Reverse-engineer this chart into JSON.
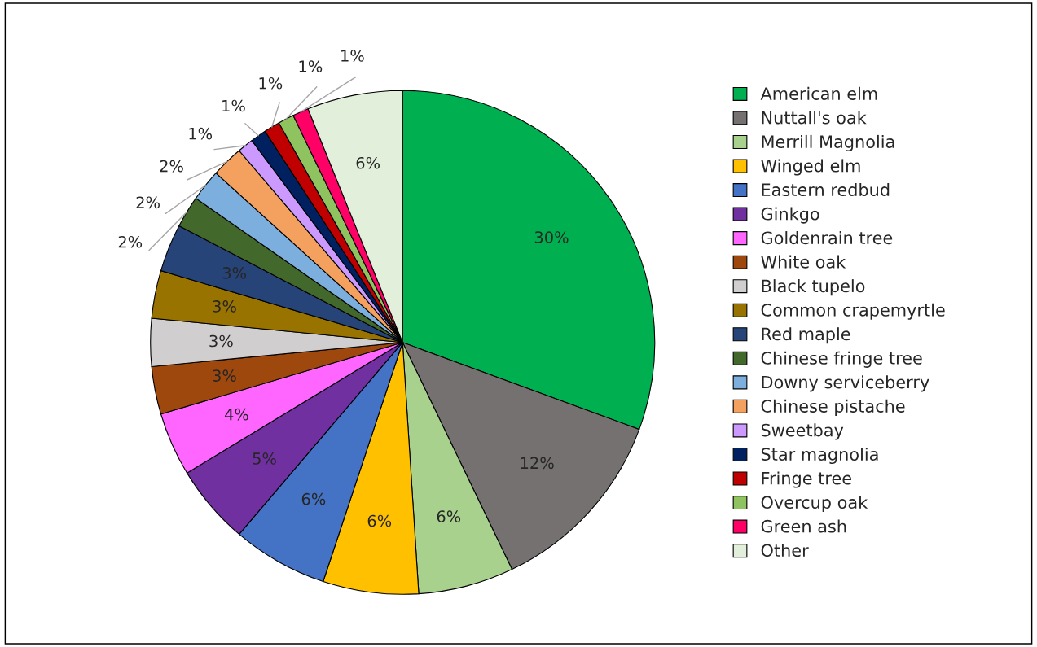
{
  "chart_data": {
    "type": "pie",
    "categories": [
      "American elm",
      "Nuttall's oak",
      "Merrill Magnolia",
      "Winged elm",
      "Eastern redbud",
      "Ginkgo",
      "Goldenrain tree",
      "White oak",
      "Black tupelo",
      "Common crapemyrtle",
      "Red maple",
      "Chinese fringe tree",
      "Downy serviceberry",
      "Chinese pistache",
      "Sweetbay",
      "Star magnolia",
      "Fringe tree",
      "Overcup oak",
      "Green ash",
      "Other"
    ],
    "values": [
      30,
      12,
      6,
      6,
      6,
      5,
      4,
      3,
      3,
      3,
      3,
      2,
      2,
      2,
      1,
      1,
      1,
      1,
      1,
      6
    ],
    "value_labels": [
      "30%",
      "12%",
      "6%",
      "6%",
      "6%",
      "5%",
      "4%",
      "3%",
      "3%",
      "3%",
      "3%",
      "2%",
      "2%",
      "2%",
      "1%",
      "1%",
      "1%",
      "1%",
      "1%",
      "6%"
    ],
    "colors": [
      "#00b050",
      "#767171",
      "#a9d18e",
      "#ffc000",
      "#4472c4",
      "#7030a0",
      "#ff66ff",
      "#9e480e",
      "#d0cece",
      "#997300",
      "#264478",
      "#43682b",
      "#7cafdd",
      "#f4a15f",
      "#cc99ff",
      "#002060",
      "#c00000",
      "#8fc35f",
      "#ff0066",
      "#e2efda"
    ],
    "legend": "right"
  }
}
